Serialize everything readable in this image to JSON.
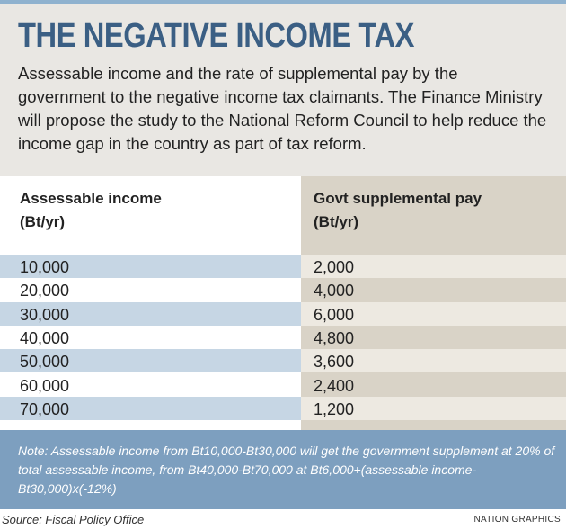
{
  "title": "THE NEGATIVE INCOME TAX",
  "description": "Assessable income and the rate of supplemental pay by the government to the negative income tax claimants. The Finance Ministry will propose the study to the National Reform Council to help reduce the income gap in the country as part of tax reform.",
  "colors": {
    "title": "#3b5f84",
    "background": "#e9e7e3",
    "left_column_shade": "#c6d6e4",
    "right_column": "#d9d3c7",
    "right_column_shade": "#ede9e1",
    "note_background": "#7d9fbf"
  },
  "chart_data": {
    "type": "table",
    "columns": [
      "Assessable income (Bt/yr)",
      "Govt supplemental pay (Bt/yr)"
    ],
    "headers": {
      "left": [
        "Assessable income",
        "(Bt/yr)"
      ],
      "right": [
        "Govt supplemental pay",
        "(Bt/yr)"
      ]
    },
    "rows": [
      [
        "10,000",
        "2,000"
      ],
      [
        "20,000",
        "4,000"
      ],
      [
        "30,000",
        "6,000"
      ],
      [
        "40,000",
        "4,800"
      ],
      [
        "50,000",
        "3,600"
      ],
      [
        "60,000",
        "2,400"
      ],
      [
        "70,000",
        "1,200"
      ]
    ]
  },
  "note": "Note: Assessable income from Bt10,000-Bt30,000 will get the government supplement at 20% of total assessable income, from Bt40,000-Bt70,000 at Bt6,000+(assessable income-Bt30,000)x(-12%)",
  "source": "Source: Fiscal Policy Office",
  "credit": "NATION GRAPHICS"
}
